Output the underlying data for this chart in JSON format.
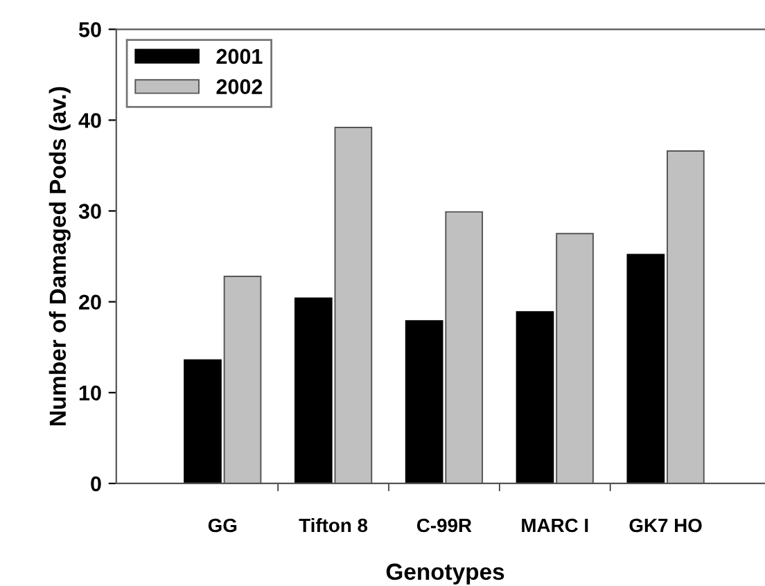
{
  "chart_data": {
    "type": "bar",
    "xlabel": "Genotypes",
    "ylabel": "Number of Damaged Pods (av.)",
    "categories": [
      "GG",
      "Tifton 8",
      "C-99R",
      "MARC I",
      "GK7 HO"
    ],
    "series": [
      {
        "name": "2001",
        "color": "#000000",
        "values": [
          13.6,
          20.4,
          17.9,
          18.9,
          25.2
        ]
      },
      {
        "name": "2002",
        "color": "#c0c0c0",
        "values": [
          22.8,
          39.2,
          29.9,
          27.5,
          36.6
        ]
      }
    ],
    "ylim": [
      0,
      50
    ],
    "yticks": [
      0,
      10,
      20,
      30,
      40,
      50
    ],
    "grid": false,
    "legend": "top left"
  }
}
